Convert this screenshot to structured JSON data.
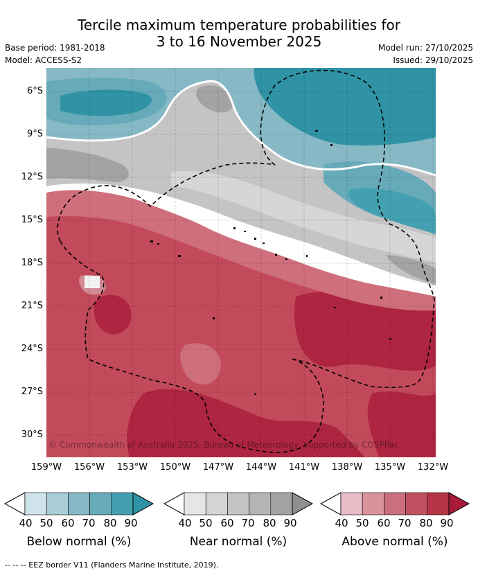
{
  "title": {
    "line1": "Tercile maximum temperature probabilities for",
    "line2": "3 to 16 November 2025"
  },
  "meta": {
    "base_period": "Base period: 1981-2018",
    "model": "Model: ACCESS-S2",
    "model_run": "Model run: 27/10/2025",
    "issued": "Issued: 29/10/2025"
  },
  "map": {
    "lat_labels": [
      "6°S",
      "9°S",
      "12°S",
      "15°S",
      "18°S",
      "21°S",
      "24°S",
      "27°S",
      "30°S"
    ],
    "lon_labels": [
      "159°W",
      "156°W",
      "153°W",
      "150°W",
      "147°W",
      "144°W",
      "141°W",
      "138°W",
      "135°W",
      "132°W"
    ],
    "copyright": "© Commonwealth of Australia 2025, Bureau of Meteorology, supported by COSPPac"
  },
  "colorbars": [
    {
      "title": "Below normal (%)",
      "ticks": [
        "40",
        "50",
        "60",
        "70",
        "80",
        "90"
      ],
      "colors": [
        "#ffffff",
        "#cfe4ea",
        "#a8cdd6",
        "#86b9c5",
        "#67aab9",
        "#43a0b0",
        "#2f93a5"
      ]
    },
    {
      "title": "Near normal (%)",
      "ticks": [
        "40",
        "50",
        "60",
        "70",
        "80",
        "90"
      ],
      "colors": [
        "#ffffff",
        "#e6e6e6",
        "#d4d4d4",
        "#c4c4c4",
        "#b4b4b4",
        "#a3a3a3",
        "#8f8f8f"
      ]
    },
    {
      "title": "Above normal (%)",
      "ticks": [
        "40",
        "50",
        "60",
        "70",
        "80",
        "90"
      ],
      "colors": [
        "#ffffff",
        "#e8bcc4",
        "#d8939d",
        "#c9707c",
        "#c0505f",
        "#b53447",
        "#a81c3a"
      ]
    }
  ],
  "colors": {
    "below_dark": "#2f93a5",
    "near_mid": "#c0c0c0",
    "above_mid": "#c24a5a",
    "above_dark": "#ae2541"
  },
  "footer": "--  --  -- EEZ border V11 (Flanders Marine Institute, 2019)."
}
